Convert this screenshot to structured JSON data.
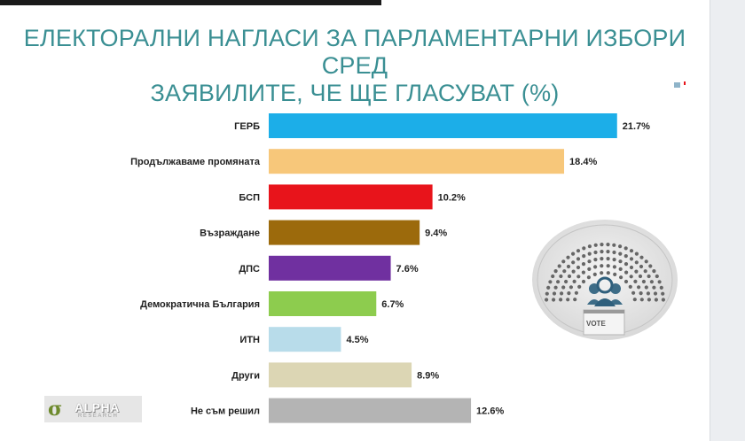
{
  "title": {
    "line1": "ЕЛЕКТОРАЛНИ НАГЛАСИ ЗА ПАРЛАМЕНТАРНИ ИЗБОРИ СРЕД",
    "line2": "ЗАЯВИЛИТЕ, ЧЕ ЩЕ ГЛАСУВАТ (%)"
  },
  "logo": {
    "text": "ALPHA",
    "subtext": "RESEARCH"
  },
  "emblem": {
    "text": "VOTE"
  },
  "chart_data": {
    "type": "bar",
    "orientation": "horizontal",
    "title": "ЕЛЕКТОРАЛНИ НАГЛАСИ ЗА ПАРЛАМЕНТАРНИ ИЗБОРИ СРЕД ЗАЯВИЛИТЕ, ЧЕ ЩЕ ГЛАСУВАТ (%)",
    "categories": [
      "ГЕРБ",
      "Продължаваме промяната",
      "БСП",
      "Възраждане",
      "ДПС",
      "Демократична България",
      "ИТН",
      "Други",
      "Не съм решил"
    ],
    "values": [
      21.7,
      18.4,
      10.2,
      9.4,
      7.6,
      6.7,
      4.5,
      8.9,
      12.6
    ],
    "value_labels": [
      "21.7%",
      "18.4%",
      "10.2%",
      "9.4%",
      "7.6%",
      "6.7%",
      "4.5%",
      "8.9%",
      "12.6%"
    ],
    "colors": [
      "#1caee8",
      "#f7c77a",
      "#e8141b",
      "#9c6a0c",
      "#7030a0",
      "#8dcc4e",
      "#b8dcea",
      "#dcd6b4",
      "#b4b4b4"
    ],
    "xlabel": "",
    "ylabel": "",
    "grid": false,
    "legend": "none"
  }
}
